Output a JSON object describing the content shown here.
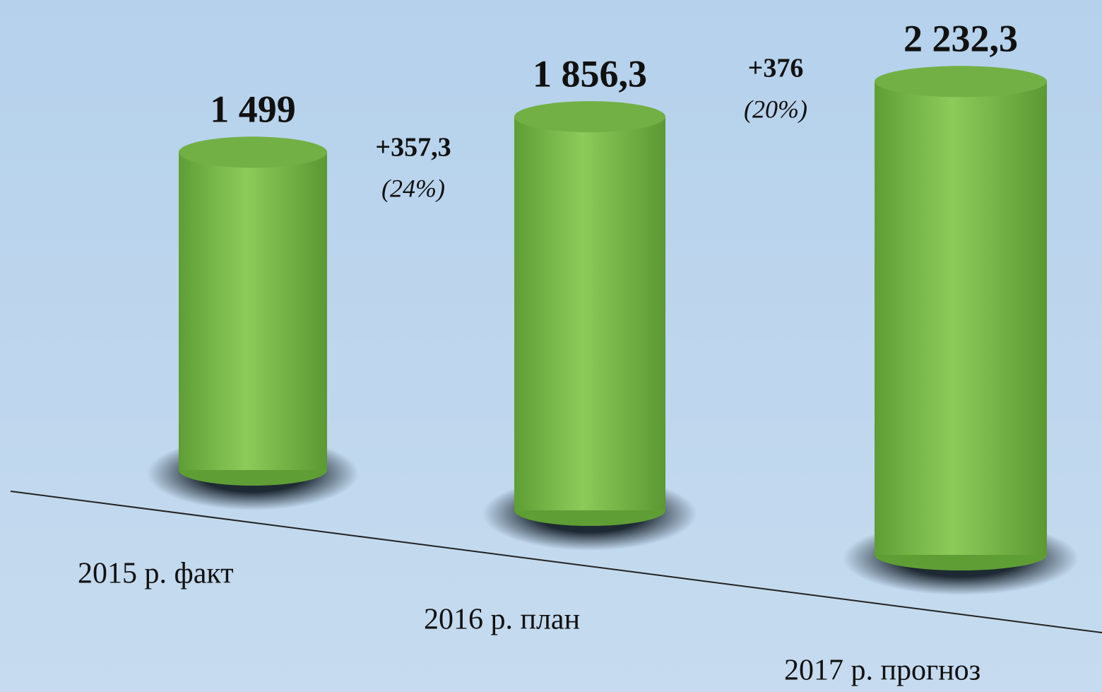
{
  "chart_data": {
    "type": "cylinder",
    "categories": [
      "2015 р. факт",
      "2016 р. план",
      "2017 р. прогноз"
    ],
    "values": [
      1499,
      1856.3,
      2232.3
    ],
    "value_labels": [
      "1 499",
      "1 856,3",
      "2 232,3"
    ],
    "color": "#7cbf4a",
    "annotations": [
      {
        "change": "+357,3",
        "percent": "(24%)"
      },
      {
        "change": "+376",
        "percent": "(20%)"
      }
    ]
  }
}
